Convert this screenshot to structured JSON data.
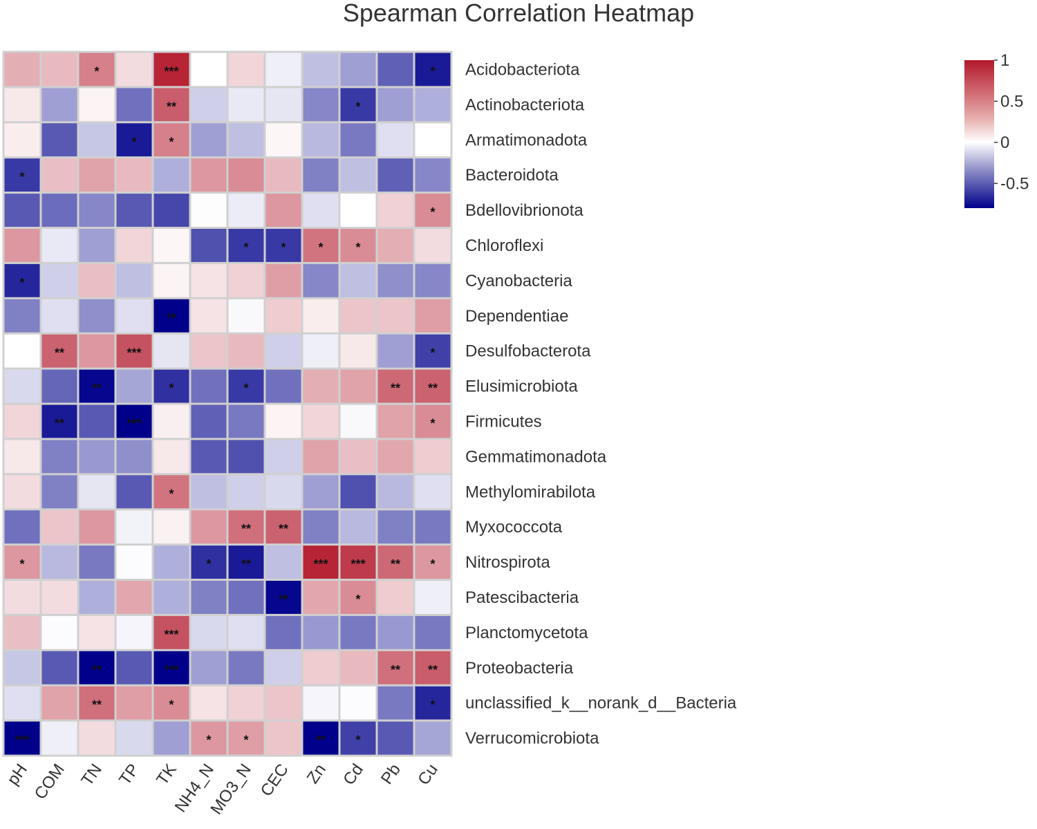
{
  "chart_data": {
    "type": "heatmap",
    "title": "Spearman Correlation Heatmap",
    "xlabel": "",
    "ylabel": "",
    "columns": [
      "pH",
      "COM",
      "TN",
      "TP",
      "TK",
      "NH4_N",
      "MO3_N",
      "CEC",
      "Zn",
      "Cd",
      "Pb",
      "Cu"
    ],
    "rows": [
      "Acidobacteriota",
      "Actinobacteriota",
      "Armatimonadota",
      "Bacteroidota",
      "Bdellovibrionota",
      "Chloroflexi",
      "Cyanobacteria",
      "Dependentiae",
      "Desulfobacterota",
      "Elusimicrobiota",
      "Firmicutes",
      "Gemmatimonadota",
      "Methylomirabilota",
      "Myxococcota",
      "Nitrospirota",
      "Patescibacteria",
      "Planctomycetota",
      "Proteobacteria",
      "unclassified_k__norank_d__Bacteria",
      "Verrucomicrobiota"
    ],
    "values": [
      [
        0.35,
        0.3,
        0.55,
        0.15,
        0.95,
        0.0,
        0.18,
        -0.05,
        -0.2,
        -0.3,
        -0.5,
        -0.72
      ],
      [
        0.1,
        -0.3,
        0.05,
        -0.45,
        0.7,
        -0.15,
        -0.07,
        -0.08,
        -0.38,
        -0.62,
        -0.3,
        -0.25
      ],
      [
        0.08,
        -0.52,
        -0.18,
        -0.72,
        0.55,
        -0.3,
        -0.2,
        0.04,
        -0.22,
        -0.42,
        -0.1,
        0.0
      ],
      [
        -0.62,
        0.28,
        0.4,
        0.3,
        -0.25,
        0.45,
        0.5,
        0.3,
        -0.4,
        -0.2,
        -0.5,
        -0.38
      ],
      [
        -0.52,
        -0.46,
        -0.38,
        -0.52,
        -0.58,
        0.01,
        -0.06,
        0.45,
        -0.1,
        0.0,
        0.2,
        0.5
      ],
      [
        0.45,
        -0.07,
        -0.3,
        0.18,
        0.04,
        -0.55,
        -0.62,
        -0.62,
        0.6,
        0.5,
        0.35,
        0.15
      ],
      [
        -0.68,
        -0.15,
        0.28,
        -0.2,
        0.05,
        0.12,
        0.2,
        0.42,
        -0.38,
        -0.2,
        -0.35,
        -0.38
      ],
      [
        -0.4,
        -0.1,
        -0.35,
        -0.1,
        -0.88,
        0.12,
        -0.02,
        0.22,
        0.08,
        0.25,
        0.25,
        0.42
      ],
      [
        0.0,
        0.68,
        0.45,
        0.75,
        -0.08,
        0.25,
        0.3,
        -0.15,
        -0.05,
        0.1,
        -0.3,
        -0.6
      ],
      [
        -0.12,
        -0.48,
        -0.78,
        -0.28,
        -0.65,
        -0.45,
        -0.62,
        -0.45,
        0.35,
        0.4,
        0.65,
        0.68
      ],
      [
        0.18,
        -0.72,
        -0.52,
        -0.88,
        0.07,
        -0.5,
        -0.42,
        0.05,
        0.18,
        -0.02,
        0.4,
        0.5
      ],
      [
        0.1,
        -0.4,
        -0.32,
        -0.35,
        0.1,
        -0.52,
        -0.55,
        -0.15,
        0.4,
        0.28,
        0.38,
        0.22
      ],
      [
        0.15,
        -0.4,
        -0.08,
        -0.52,
        0.6,
        -0.2,
        -0.15,
        -0.12,
        -0.3,
        -0.55,
        -0.22,
        -0.1
      ],
      [
        -0.45,
        0.25,
        0.45,
        -0.04,
        0.06,
        0.45,
        0.62,
        0.68,
        -0.4,
        -0.22,
        -0.4,
        -0.42
      ],
      [
        0.45,
        -0.22,
        -0.42,
        -0.01,
        -0.25,
        -0.65,
        -0.72,
        -0.2,
        0.95,
        0.85,
        0.65,
        0.45
      ],
      [
        0.15,
        0.15,
        -0.25,
        0.38,
        -0.25,
        -0.4,
        -0.45,
        -0.78,
        0.38,
        0.5,
        0.22,
        -0.05
      ],
      [
        0.28,
        -0.01,
        0.12,
        -0.03,
        0.75,
        -0.12,
        -0.1,
        -0.45,
        -0.32,
        -0.42,
        -0.32,
        -0.42
      ],
      [
        -0.18,
        -0.52,
        -0.82,
        -0.52,
        -0.92,
        -0.3,
        -0.42,
        -0.15,
        0.22,
        0.3,
        0.62,
        0.7
      ],
      [
        -0.1,
        0.4,
        0.62,
        0.42,
        0.5,
        0.12,
        0.2,
        0.25,
        -0.03,
        -0.01,
        -0.42,
        -0.68
      ],
      [
        -0.88,
        -0.05,
        0.15,
        -0.12,
        -0.3,
        0.45,
        0.42,
        0.25,
        -0.82,
        -0.6,
        -0.52,
        -0.28
      ]
    ],
    "significance": [
      [
        "",
        "",
        "*",
        "",
        "***",
        "",
        "",
        "",
        "",
        "",
        "",
        "*"
      ],
      [
        "",
        "",
        "",
        "",
        "**",
        "",
        "",
        "",
        "",
        "*",
        "",
        ""
      ],
      [
        "",
        "",
        "",
        "*",
        "*",
        "",
        "",
        "",
        "",
        "",
        "",
        ""
      ],
      [
        "*",
        "",
        "",
        "",
        "",
        "",
        "",
        "",
        "",
        "",
        "",
        ""
      ],
      [
        "",
        "",
        "",
        "",
        "",
        "",
        "",
        "",
        "",
        "",
        "",
        "*"
      ],
      [
        "",
        "",
        "",
        "",
        "",
        "",
        "*",
        "*",
        "*",
        "*",
        "",
        ""
      ],
      [
        "*",
        "",
        "",
        "",
        "",
        "",
        "",
        "",
        "",
        "",
        "",
        ""
      ],
      [
        "",
        "",
        "",
        "",
        "**",
        "",
        "",
        "",
        "",
        "",
        "",
        ""
      ],
      [
        "",
        "**",
        "",
        "***",
        "",
        "",
        "",
        "",
        "",
        "",
        "",
        "*"
      ],
      [
        "",
        "",
        "**",
        "",
        "*",
        "",
        "*",
        "",
        "",
        "",
        "**",
        "**"
      ],
      [
        "",
        "**",
        "",
        "***",
        "",
        "",
        "",
        "",
        "",
        "",
        "",
        "*"
      ],
      [
        "",
        "",
        "",
        "",
        "",
        "",
        "",
        "",
        "",
        "",
        "",
        ""
      ],
      [
        "",
        "",
        "",
        "",
        "*",
        "",
        "",
        "",
        "",
        "",
        "",
        ""
      ],
      [
        "",
        "",
        "",
        "",
        "",
        "",
        "**",
        "**",
        "",
        "",
        "",
        ""
      ],
      [
        "*",
        "",
        "",
        "",
        "",
        "*",
        "**",
        "",
        "***",
        "***",
        "**",
        "*"
      ],
      [
        "",
        "",
        "",
        "",
        "",
        "",
        "",
        "**",
        "",
        "*",
        "",
        ""
      ],
      [
        "",
        "",
        "",
        "",
        "***",
        "",
        "",
        "",
        "",
        "",
        "",
        ""
      ],
      [
        "",
        "",
        "**",
        "",
        "***",
        "",
        "",
        "",
        "",
        "",
        "**",
        "**"
      ],
      [
        "",
        "",
        "**",
        "",
        "*",
        "",
        "",
        "",
        "",
        "",
        "",
        "*"
      ],
      [
        "***",
        "",
        "",
        "",
        "",
        "*",
        "*",
        "",
        "**",
        "*",
        "",
        ""
      ]
    ],
    "colorbar": {
      "range": [
        -0.8,
        1.0
      ],
      "ticks": [
        1,
        0.5,
        0,
        -0.5
      ],
      "tick_labels": [
        "1",
        "0.5",
        "0",
        "-0.5"
      ],
      "low_color": "#00008b",
      "mid_color": "#ffffff",
      "high_color": "#b2182b"
    },
    "legend": "right"
  }
}
